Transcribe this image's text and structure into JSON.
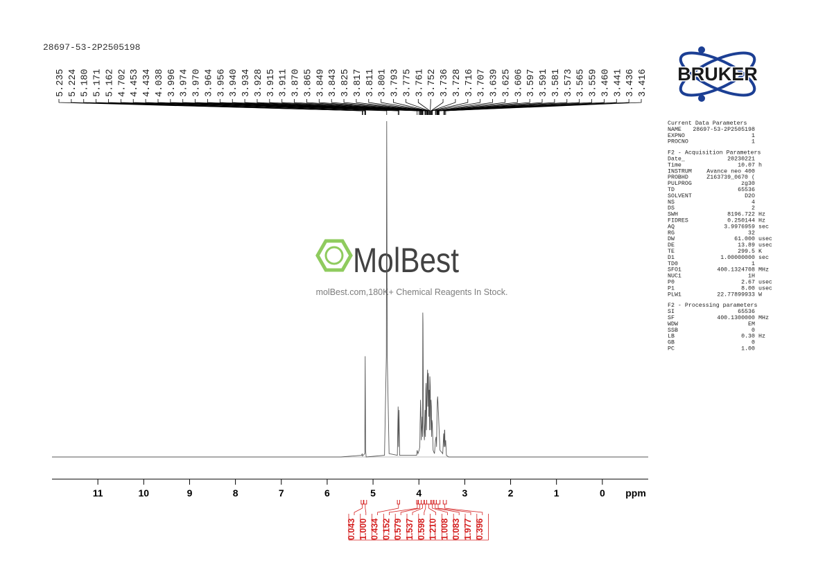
{
  "chart_data": {
    "type": "line",
    "title": "28697-53-2P2505198",
    "xlabel": "ppm",
    "xlim": [
      12,
      -1
    ],
    "xticks": [
      11,
      10,
      9,
      8,
      7,
      6,
      5,
      4,
      3,
      2,
      1,
      0
    ],
    "ylim": [
      0,
      100
    ],
    "color": "#555555",
    "x": [
      12,
      5.7,
      5.25,
      5.235,
      5.23,
      5.18,
      5.171,
      5.162,
      5.15,
      4.75,
      4.71,
      4.702,
      4.69,
      4.65,
      4.47,
      4.453,
      4.444,
      4.434,
      4.42,
      4.05,
      4.038,
      4.02,
      3.996,
      3.98,
      3.974,
      3.97,
      3.964,
      3.956,
      3.948,
      3.94,
      3.934,
      3.928,
      3.92,
      3.915,
      3.911,
      3.9,
      3.88,
      3.87,
      3.865,
      3.857,
      3.849,
      3.843,
      3.835,
      3.825,
      3.817,
      3.811,
      3.805,
      3.801,
      3.793,
      3.784,
      3.775,
      3.768,
      3.761,
      3.752,
      3.744,
      3.736,
      3.728,
      3.722,
      3.716,
      3.707,
      3.69,
      3.66,
      3.639,
      3.625,
      3.615,
      3.606,
      3.597,
      3.591,
      3.581,
      3.573,
      3.565,
      3.559,
      3.54,
      3.48,
      3.46,
      3.45,
      3.441,
      3.436,
      3.43,
      3.416,
      3.4,
      3.35,
      -1
    ],
    "values": [
      0,
      0,
      0.5,
      1,
      0.3,
      1,
      30,
      2,
      0,
      0.5,
      30,
      100,
      30,
      1,
      0.5,
      15,
      3,
      14,
      0.5,
      0.5,
      2,
      1,
      2,
      3,
      10,
      12,
      17,
      13,
      5,
      8,
      10,
      12,
      6,
      43,
      40,
      10,
      5,
      12,
      14,
      6,
      20,
      22,
      8,
      18,
      24,
      26,
      15,
      22,
      25,
      12,
      20,
      8,
      24,
      21,
      8,
      17,
      15,
      6,
      11,
      10,
      2,
      1,
      5,
      6,
      3,
      12,
      17,
      18,
      15,
      13,
      10,
      8,
      2,
      1,
      7,
      3,
      8,
      8,
      3,
      5,
      0.5,
      0,
      0
    ],
    "peak_labels": [
      {
        "value": 5.235,
        "label": "5.235"
      },
      {
        "value": 5.224,
        "label": "5.224"
      },
      {
        "value": 5.18,
        "label": "5.180"
      },
      {
        "value": 5.171,
        "label": "5.171"
      },
      {
        "value": 5.162,
        "label": "5.162"
      },
      {
        "value": 4.702,
        "label": "4.702"
      },
      {
        "value": 4.453,
        "label": "4.453"
      },
      {
        "value": 4.434,
        "label": "4.434"
      },
      {
        "value": 4.038,
        "label": "4.038"
      },
      {
        "value": 3.996,
        "label": "3.996"
      },
      {
        "value": 3.974,
        "label": "3.974"
      },
      {
        "value": 3.97,
        "label": "3.970"
      },
      {
        "value": 3.964,
        "label": "3.964"
      },
      {
        "value": 3.956,
        "label": "3.956"
      },
      {
        "value": 3.94,
        "label": "3.940"
      },
      {
        "value": 3.934,
        "label": "3.934"
      },
      {
        "value": 3.928,
        "label": "3.928"
      },
      {
        "value": 3.915,
        "label": "3.915"
      },
      {
        "value": 3.911,
        "label": "3.911"
      },
      {
        "value": 3.87,
        "label": "3.870"
      },
      {
        "value": 3.865,
        "label": "3.865"
      },
      {
        "value": 3.849,
        "label": "3.849"
      },
      {
        "value": 3.843,
        "label": "3.843"
      },
      {
        "value": 3.825,
        "label": "3.825"
      },
      {
        "value": 3.817,
        "label": "3.817"
      },
      {
        "value": 3.811,
        "label": "3.811"
      },
      {
        "value": 3.801,
        "label": "3.801"
      },
      {
        "value": 3.793,
        "label": "3.793"
      },
      {
        "value": 3.775,
        "label": "3.775"
      },
      {
        "value": 3.761,
        "label": "3.761"
      },
      {
        "value": 3.752,
        "label": "3.752"
      },
      {
        "value": 3.736,
        "label": "3.736"
      },
      {
        "value": 3.728,
        "label": "3.728"
      },
      {
        "value": 3.716,
        "label": "3.716"
      },
      {
        "value": 3.707,
        "label": "3.707"
      },
      {
        "value": 3.639,
        "label": "3.639"
      },
      {
        "value": 3.625,
        "label": "3.625"
      },
      {
        "value": 3.606,
        "label": "3.606"
      },
      {
        "value": 3.597,
        "label": "3.597"
      },
      {
        "value": 3.591,
        "label": "3.591"
      },
      {
        "value": 3.581,
        "label": "3.581"
      },
      {
        "value": 3.573,
        "label": "3.573"
      },
      {
        "value": 3.565,
        "label": "3.565"
      },
      {
        "value": 3.559,
        "label": "3.559"
      },
      {
        "value": 3.46,
        "label": "3.460"
      },
      {
        "value": 3.441,
        "label": "3.441"
      },
      {
        "value": 3.436,
        "label": "3.436"
      },
      {
        "value": 3.416,
        "label": "3.416"
      }
    ],
    "integrals": [
      {
        "value": 0.043,
        "label": "0.043"
      },
      {
        "value": 1,
        "label": "1.000"
      },
      {
        "value": 0.434,
        "label": "0.434"
      },
      {
        "value": 0.152,
        "label": "0.152"
      },
      {
        "value": 0.579,
        "label": "0.579"
      },
      {
        "value": 1.537,
        "label": "1.537"
      },
      {
        "value": 0.598,
        "label": "0.598"
      },
      {
        "value": 1.21,
        "label": "1.210"
      },
      {
        "value": 1.008,
        "label": "1.008"
      },
      {
        "value": 0.083,
        "label": "0.083"
      },
      {
        "value": 1.977,
        "label": "1.977"
      },
      {
        "value": 0.396,
        "label": "0.396"
      }
    ],
    "integral_ranges": [
      [
        5.26,
        5.21
      ],
      [
        5.2,
        5.14
      ],
      [
        4.47,
        4.42
      ],
      [
        4.05,
        4.02
      ],
      [
        4.01,
        3.95
      ],
      [
        3.95,
        3.89
      ],
      [
        3.88,
        3.83
      ],
      [
        3.83,
        3.74
      ],
      [
        3.73,
        3.69
      ],
      [
        3.67,
        3.62
      ],
      [
        3.62,
        3.54
      ],
      [
        3.47,
        3.4
      ]
    ],
    "integral_color": "#d42020"
  },
  "logo": "BRUKER",
  "watermark": {
    "name": "MolBest",
    "tagline": "molBest.com,180K+ Chemical Reagents In Stock."
  },
  "parameters": [
    {
      "title": "Current Data Parameters",
      "rows": [
        [
          "NAME",
          "28697-53-2P2505198",
          ""
        ],
        [
          "EXPNO",
          "1",
          ""
        ],
        [
          "PROCNO",
          "1",
          ""
        ]
      ]
    },
    {
      "title": "F2 - Acquisition Parameters",
      "rows": [
        [
          "Date_",
          "20230221",
          ""
        ],
        [
          "Time",
          "10.07",
          "h"
        ],
        [
          "INSTRUM",
          "Avance neo 400",
          ""
        ],
        [
          "PROBHD",
          "Z163739_0670 (",
          ""
        ],
        [
          "PULPROG",
          "zg30",
          ""
        ],
        [
          "TD",
          "65536",
          ""
        ],
        [
          "SOLVENT",
          "D2O",
          ""
        ],
        [
          "NS",
          "4",
          ""
        ],
        [
          "DS",
          "2",
          ""
        ],
        [
          "SWH",
          "8196.722",
          "Hz"
        ],
        [
          "FIDRES",
          "0.250144",
          "Hz"
        ],
        [
          "AQ",
          "3.9976959",
          "sec"
        ],
        [
          "RG",
          "32",
          ""
        ],
        [
          "DW",
          "61.000",
          "usec"
        ],
        [
          "DE",
          "13.89",
          "usec"
        ],
        [
          "TE",
          "299.5",
          "K"
        ],
        [
          "D1",
          "1.00000000",
          "sec"
        ],
        [
          "TD0",
          "1",
          ""
        ],
        [
          "SFO1",
          "400.1324708",
          "MHz"
        ],
        [
          "NUC1",
          "1H",
          ""
        ],
        [
          "P0",
          "2.67",
          "usec"
        ],
        [
          "P1",
          "8.00",
          "usec"
        ],
        [
          "PLW1",
          "22.77899933",
          "W"
        ]
      ]
    },
    {
      "title": "F2 - Processing parameters",
      "rows": [
        [
          "SI",
          "65536",
          ""
        ],
        [
          "SF",
          "400.1300000",
          "MHz"
        ],
        [
          "WDW",
          "EM",
          ""
        ],
        [
          "SSB",
          "0",
          ""
        ],
        [
          "LB",
          "0.30",
          "Hz"
        ],
        [
          "GB",
          "0",
          ""
        ],
        [
          "PC",
          "1.00",
          ""
        ]
      ]
    }
  ]
}
